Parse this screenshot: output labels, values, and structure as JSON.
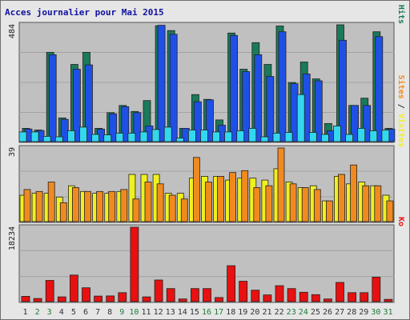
{
  "title": "Acces journalier pour Mai 2015",
  "colors": {
    "background": "#e6e6e6",
    "panel": "#c0c0c0",
    "grid": "#a3a3a3",
    "pages": "#33d8ee",
    "files": "#1f50e6",
    "hits": "#1a7a5a",
    "visits": "#f08a20",
    "sites": "#f0f020",
    "kb": "#e81010",
    "weekday_label": "#333333",
    "weekend_label": "#1e7a3a",
    "title": "#1010a0"
  },
  "chart_data": [
    {
      "type": "bar",
      "panel": "top",
      "ymax_label": "484",
      "ylim": [
        0,
        484
      ],
      "right_label_parts": [
        {
          "text": "Pages",
          "color": "#33d8ee"
        },
        {
          "text": " / ",
          "color": "#333333"
        },
        {
          "text": "Fichiers",
          "color": "#1f50e6"
        },
        {
          "text": " / ",
          "color": "#333333"
        },
        {
          "text": "Hits",
          "color": "#1a7a5a"
        }
      ],
      "categories": [
        "1",
        "2",
        "3",
        "4",
        "5",
        "6",
        "7",
        "8",
        "9",
        "10",
        "11",
        "12",
        "13",
        "14",
        "15",
        "16",
        "17",
        "18",
        "19",
        "20",
        "21",
        "22",
        "23",
        "24",
        "25",
        "26",
        "27",
        "28",
        "29",
        "30",
        "31"
      ],
      "series": [
        {
          "name": "Hits",
          "color": "#1a7a5a",
          "values": [
            55,
            48,
            370,
            98,
            320,
            370,
            55,
            120,
            150,
            125,
            170,
            480,
            460,
            55,
            195,
            175,
            90,
            450,
            300,
            410,
            320,
            479,
            245,
            330,
            260,
            75,
            484,
            150,
            180,
            455,
            55
          ]
        },
        {
          "name": "Fichiers",
          "color": "#1f50e6",
          "values": [
            52,
            46,
            360,
            92,
            300,
            318,
            52,
            115,
            145,
            120,
            65,
            482,
            445,
            55,
            165,
            173,
            68,
            440,
            290,
            360,
            270,
            455,
            240,
            280,
            252,
            45,
            420,
            150,
            150,
            435,
            52
          ]
        },
        {
          "name": "Pages",
          "color": "#33d8ee",
          "values": [
            40,
            40,
            22,
            20,
            45,
            60,
            30,
            28,
            35,
            35,
            40,
            50,
            60,
            15,
            48,
            48,
            40,
            40,
            45,
            55,
            20,
            35,
            38,
            195,
            38,
            30,
            65,
            30,
            55,
            45,
            48
          ]
        }
      ]
    },
    {
      "type": "bar",
      "panel": "middle",
      "ymax_label": "39",
      "ylim": [
        0,
        39
      ],
      "right_label_parts": [
        {
          "text": "Sites",
          "color": "#f08a20"
        },
        {
          "text": " / ",
          "color": "#333333"
        },
        {
          "text": "Visites",
          "color": "#f0f020"
        }
      ],
      "categories": [
        "1",
        "2",
        "3",
        "4",
        "5",
        "6",
        "7",
        "8",
        "9",
        "10",
        "11",
        "12",
        "13",
        "14",
        "15",
        "16",
        "17",
        "18",
        "19",
        "20",
        "21",
        "22",
        "23",
        "24",
        "25",
        "26",
        "27",
        "28",
        "29",
        "30",
        "31"
      ],
      "series": [
        {
          "name": "Visites",
          "color": "#f0f020",
          "values": [
            14,
            15,
            15,
            13,
            19,
            16,
            15,
            15,
            16,
            25,
            25,
            25,
            15,
            15,
            23,
            24,
            24,
            22,
            23,
            23,
            22,
            28,
            21,
            18,
            19,
            11,
            24,
            20,
            21,
            19,
            14
          ]
        },
        {
          "name": "Sites",
          "color": "#f08a20",
          "values": [
            17,
            16,
            21,
            10,
            18,
            16,
            16,
            16,
            17,
            12,
            21,
            20,
            14,
            12,
            34,
            21,
            24,
            26,
            27,
            18,
            19,
            39,
            20,
            18,
            17,
            11,
            25,
            30,
            19,
            19,
            11
          ]
        }
      ]
    },
    {
      "type": "bar",
      "panel": "bottom",
      "ymax_label": "18234",
      "ylim": [
        0,
        18234
      ],
      "right_label_parts": [
        {
          "text": "Ko",
          "color": "#e81010"
        }
      ],
      "categories": [
        "1",
        "2",
        "3",
        "4",
        "5",
        "6",
        "7",
        "8",
        "9",
        "10",
        "11",
        "12",
        "13",
        "14",
        "15",
        "16",
        "17",
        "18",
        "19",
        "20",
        "21",
        "22",
        "23",
        "24",
        "25",
        "26",
        "27",
        "28",
        "29",
        "30",
        "31"
      ],
      "series": [
        {
          "name": "Ko",
          "color": "#e81010",
          "values": [
            1300,
            760,
            5200,
            1150,
            6500,
            3400,
            1350,
            1400,
            2200,
            18234,
            1150,
            5300,
            3200,
            650,
            3200,
            3200,
            1000,
            8800,
            5000,
            2800,
            1650,
            3900,
            3200,
            2300,
            1700,
            640,
            4700,
            2200,
            2200,
            6000,
            550
          ]
        }
      ]
    }
  ],
  "x_labels": [
    "1",
    "2",
    "3",
    "4",
    "5",
    "6",
    "7",
    "8",
    "9",
    "10",
    "11",
    "12",
    "13",
    "14",
    "15",
    "16",
    "17",
    "18",
    "19",
    "20",
    "21",
    "22",
    "23",
    "24",
    "25",
    "26",
    "27",
    "28",
    "29",
    "30",
    "31"
  ],
  "weekend_days": [
    "2",
    "3",
    "9",
    "10",
    "16",
    "17",
    "23",
    "24",
    "30",
    "31"
  ]
}
